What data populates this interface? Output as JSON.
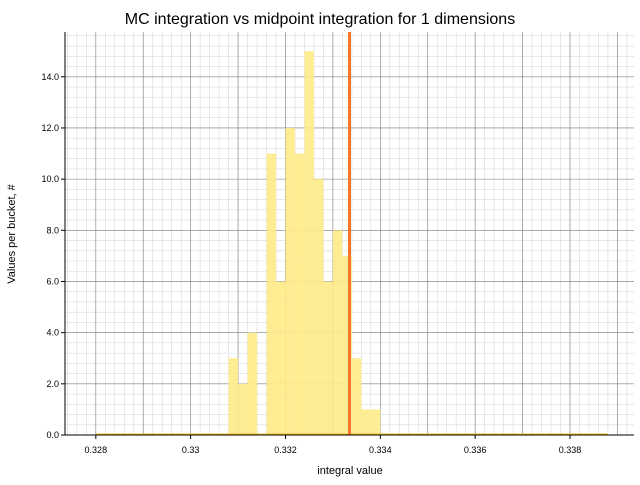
{
  "chart_data": {
    "type": "bar",
    "title": "MC integration vs midpoint integration for 1 dimensions",
    "xlabel": "integral value",
    "ylabel": "Values per bucket, #",
    "xlim": [
      0.32735,
      0.33935
    ],
    "ylim": [
      0,
      15.75
    ],
    "grid": true,
    "x_ticks": [
      0.328,
      0.33,
      0.332,
      0.334,
      0.336,
      0.338
    ],
    "x_tick_labels": [
      "0.328",
      "0.33",
      "0.332",
      "0.334",
      "0.336",
      "0.338"
    ],
    "y_ticks": [
      0,
      2,
      4,
      6,
      8,
      10,
      12,
      14
    ],
    "y_tick_labels": [
      "0.0",
      "2.0",
      "4.0",
      "6.0",
      "8.0",
      "10.0",
      "12.0",
      "14.0"
    ],
    "histogram": {
      "bin_start": 0.3308,
      "bin_width": 0.0002,
      "counts": [
        3,
        2,
        4,
        0,
        11,
        6,
        12,
        11,
        15,
        10,
        6,
        8,
        7,
        3,
        1,
        1
      ],
      "color": "#ffec8b"
    },
    "baseline": {
      "from": 0.328,
      "to": 0.3388,
      "color": "#f0c020"
    },
    "reference_line": {
      "x": 0.33335,
      "color": "#f5782a"
    },
    "colors": {
      "grid_major": "#808080",
      "grid_minor": "#d9d9d9",
      "axis": "#000000"
    }
  }
}
